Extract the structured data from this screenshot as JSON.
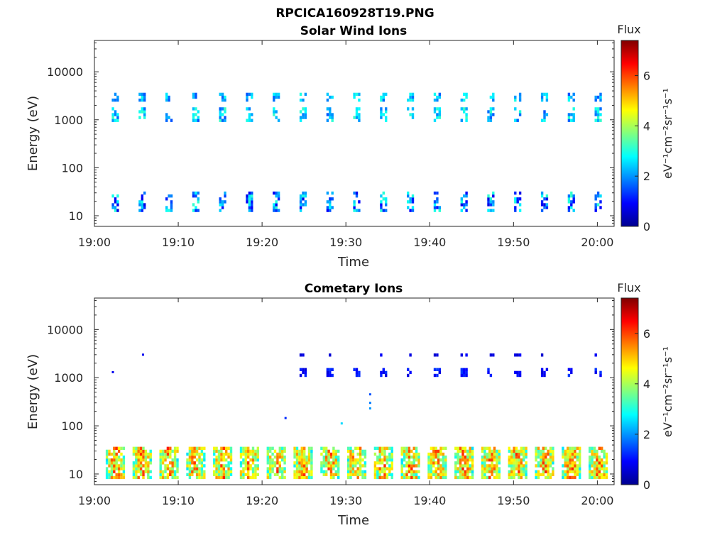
{
  "figure_title": "RPCICA160928T19.PNG",
  "colormap": [
    "#00008f",
    "#0000ff",
    "#0080ff",
    "#00ffff",
    "#80ff80",
    "#ffff00",
    "#ff8000",
    "#ff0000",
    "#800000"
  ],
  "colorbar": {
    "title": "Flux",
    "label": "eV⁻¹cm⁻²sr⁻¹s⁻¹",
    "range": [
      0,
      7.4
    ],
    "ticks": [
      0,
      2,
      4,
      6
    ],
    "tick_labels": [
      "0",
      "2",
      "4",
      "6"
    ]
  },
  "chart_data": [
    {
      "type": "heatmap",
      "title": "Solar Wind Ions",
      "xlabel": "Time",
      "ylabel": "Energy (eV)",
      "x_ticks": [
        "19:00",
        "19:10",
        "19:20",
        "19:30",
        "19:40",
        "19:50",
        "20:00"
      ],
      "x_range_min": [
        0,
        62
      ],
      "y_scale": "log",
      "y_range_eV": [
        6,
        45000
      ],
      "y_tick_labels": [
        "10",
        "100",
        "1000",
        "10000"
      ],
      "scan_times_min": [
        2.5,
        5.7,
        8.9,
        12.1,
        15.3,
        18.5,
        21.7,
        24.9,
        28.1,
        31.3,
        34.5,
        37.7,
        40.9,
        44.1,
        47.3,
        50.5,
        53.7,
        56.9,
        60.1
      ],
      "bands": [
        {
          "name": "high energy",
          "e_min_eV": 850,
          "e_max_eV": 1700,
          "flux_range": [
            1.5,
            3.2
          ]
        },
        {
          "name": "upper high energy",
          "e_min_eV": 2400,
          "e_max_eV": 3800,
          "flux_range": [
            1.5,
            3.0
          ]
        },
        {
          "name": "low energy",
          "e_min_eV": 12,
          "e_max_eV": 33,
          "flux_range": [
            0.7,
            3.2
          ]
        }
      ]
    },
    {
      "type": "heatmap",
      "title": "Cometary Ions",
      "xlabel": "Time",
      "ylabel": "Energy (eV)",
      "x_ticks": [
        "19:00",
        "19:10",
        "19:20",
        "19:30",
        "19:40",
        "19:50",
        "20:00"
      ],
      "x_range_min": [
        0,
        62
      ],
      "y_scale": "log",
      "y_range_eV": [
        6,
        45000
      ],
      "y_tick_labels": [
        "10",
        "100",
        "1000",
        "10000"
      ],
      "scan_times_min": [
        2.5,
        5.7,
        8.9,
        12.1,
        15.3,
        18.5,
        21.7,
        24.9,
        28.1,
        31.3,
        34.5,
        37.7,
        40.9,
        44.1,
        47.3,
        50.5,
        53.7,
        56.9,
        60.1
      ],
      "bands": [
        {
          "name": "high energy",
          "e_min_eV": 1050,
          "e_max_eV": 1550,
          "flux_range": [
            0.6,
            1.4
          ],
          "start_min": 24.9
        },
        {
          "name": "upper high energy",
          "e_min_eV": 2600,
          "e_max_eV": 3200,
          "flux_range": [
            0.5,
            1.0
          ],
          "start_min": 24.9
        },
        {
          "name": "low energy",
          "e_min_eV": 8,
          "e_max_eV": 35,
          "flux_range": [
            2.5,
            6.5
          ]
        }
      ],
      "isolated_points": [
        {
          "t_min": 2.2,
          "e_eV": 1300,
          "flux": 0.8
        },
        {
          "t_min": 5.8,
          "e_eV": 3000,
          "flux": 0.8
        },
        {
          "t_min": 22.8,
          "e_eV": 145,
          "flux": 1.2
        },
        {
          "t_min": 29.5,
          "e_eV": 112,
          "flux": 2.5
        },
        {
          "t_min": 32.9,
          "e_eV": 450,
          "flux": 1.5
        },
        {
          "t_min": 32.9,
          "e_eV": 300,
          "flux": 1.8
        },
        {
          "t_min": 32.9,
          "e_eV": 230,
          "flux": 2.0
        }
      ]
    }
  ]
}
